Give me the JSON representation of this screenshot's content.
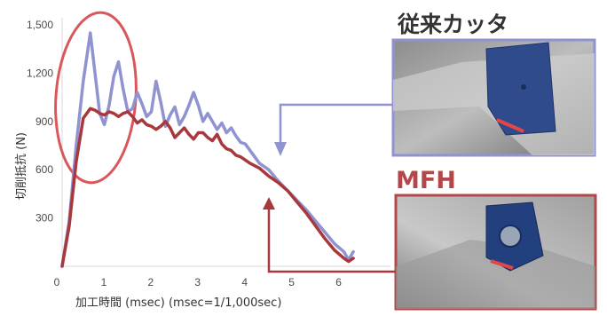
{
  "chart_data": {
    "type": "line",
    "xlabel": "加工時間 (msec) (msec=1/1,000sec)",
    "ylabel": "切削抵抗 (N)",
    "xlim": [
      0,
      6.5
    ],
    "ylim": [
      0,
      1500
    ],
    "x_ticks": [
      "0",
      "1",
      "2",
      "3",
      "4",
      "5",
      "6"
    ],
    "y_ticks": [
      "300",
      "600",
      "900",
      "1,200",
      "1,500"
    ],
    "grid": false,
    "series": [
      {
        "name": "従来カッタ",
        "color": "#8f93d0",
        "x": [
          0,
          0.15,
          0.3,
          0.45,
          0.6,
          0.7,
          0.8,
          0.9,
          1.0,
          1.1,
          1.2,
          1.3,
          1.4,
          1.5,
          1.6,
          1.7,
          1.8,
          1.9,
          2.0,
          2.1,
          2.2,
          2.3,
          2.4,
          2.5,
          2.6,
          2.7,
          2.8,
          2.9,
          3.0,
          3.1,
          3.2,
          3.3,
          3.4,
          3.5,
          3.6,
          3.7,
          3.8,
          3.9,
          4.0,
          4.2,
          4.4,
          4.6,
          4.8,
          5.0,
          5.2,
          5.4,
          5.6,
          5.8,
          6.0,
          6.1,
          6.2
        ],
        "y": [
          0,
          280,
          750,
          1150,
          1450,
          1200,
          950,
          880,
          1000,
          1180,
          1270,
          1100,
          960,
          980,
          1080,
          1010,
          930,
          960,
          1150,
          1020,
          870,
          940,
          990,
          880,
          930,
          1000,
          1080,
          1000,
          900,
          950,
          900,
          850,
          890,
          830,
          860,
          810,
          770,
          760,
          720,
          640,
          600,
          530,
          470,
          410,
          350,
          280,
          210,
          140,
          90,
          40,
          90
        ]
      },
      {
        "name": "MFH",
        "color": "#a8383c",
        "x": [
          0,
          0.15,
          0.3,
          0.45,
          0.6,
          0.7,
          0.8,
          0.9,
          1.0,
          1.1,
          1.2,
          1.3,
          1.4,
          1.5,
          1.6,
          1.7,
          1.8,
          1.9,
          2.0,
          2.1,
          2.2,
          2.3,
          2.4,
          2.5,
          2.6,
          2.7,
          2.8,
          2.9,
          3.0,
          3.1,
          3.2,
          3.3,
          3.4,
          3.5,
          3.6,
          3.7,
          3.8,
          3.9,
          4.0,
          4.2,
          4.4,
          4.6,
          4.8,
          5.0,
          5.2,
          5.4,
          5.6,
          5.8,
          6.0,
          6.1,
          6.2
        ],
        "y": [
          0,
          250,
          650,
          920,
          980,
          970,
          950,
          940,
          960,
          950,
          930,
          950,
          960,
          930,
          890,
          910,
          880,
          870,
          850,
          870,
          900,
          860,
          800,
          830,
          860,
          820,
          790,
          830,
          830,
          800,
          780,
          820,
          760,
          730,
          720,
          690,
          680,
          660,
          640,
          610,
          560,
          520,
          470,
          400,
          330,
          250,
          170,
          100,
          50,
          30,
          50
        ]
      }
    ],
    "annotations": {
      "old_label": "従来カッタ",
      "new_label": "MFH"
    }
  }
}
